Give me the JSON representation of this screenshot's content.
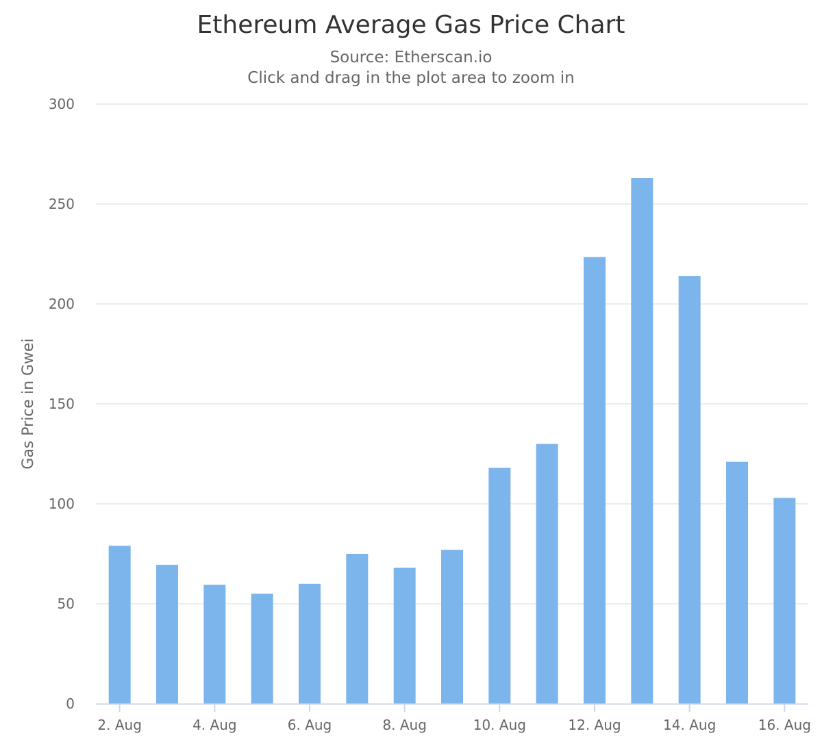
{
  "chart_data": {
    "type": "bar",
    "title": "Ethereum Average Gas Price Chart",
    "subtitle": "Source: Etherscan.io",
    "subtitle2": "Click and drag in the plot area to zoom in",
    "ylabel": "Gas Price in Gwei",
    "xlabel": "",
    "ylim": [
      0,
      300
    ],
    "y_ticks": [
      0,
      50,
      100,
      150,
      200,
      250,
      300
    ],
    "grid": true,
    "legend": "none",
    "x_tick_labels": [
      "2. Aug",
      "4. Aug",
      "6. Aug",
      "8. Aug",
      "10. Aug",
      "12. Aug",
      "14. Aug",
      "16. Aug"
    ],
    "x_tick_indices": [
      0,
      2,
      4,
      6,
      8,
      10,
      12,
      14
    ],
    "categories": [
      "2. Aug",
      "3. Aug",
      "4. Aug",
      "5. Aug",
      "6. Aug",
      "7. Aug",
      "8. Aug",
      "9. Aug",
      "10. Aug",
      "11. Aug",
      "12. Aug",
      "13. Aug",
      "14. Aug",
      "15. Aug",
      "16. Aug"
    ],
    "values": [
      79,
      69.5,
      59.5,
      55,
      60,
      75,
      68,
      77,
      118,
      130,
      223.5,
      263,
      214,
      121,
      103
    ],
    "colors": {
      "bar": "#7cb5ec",
      "grid": "#e6e6e6",
      "axis": "#ccd6eb",
      "title": "#333333",
      "text": "#666666"
    }
  }
}
